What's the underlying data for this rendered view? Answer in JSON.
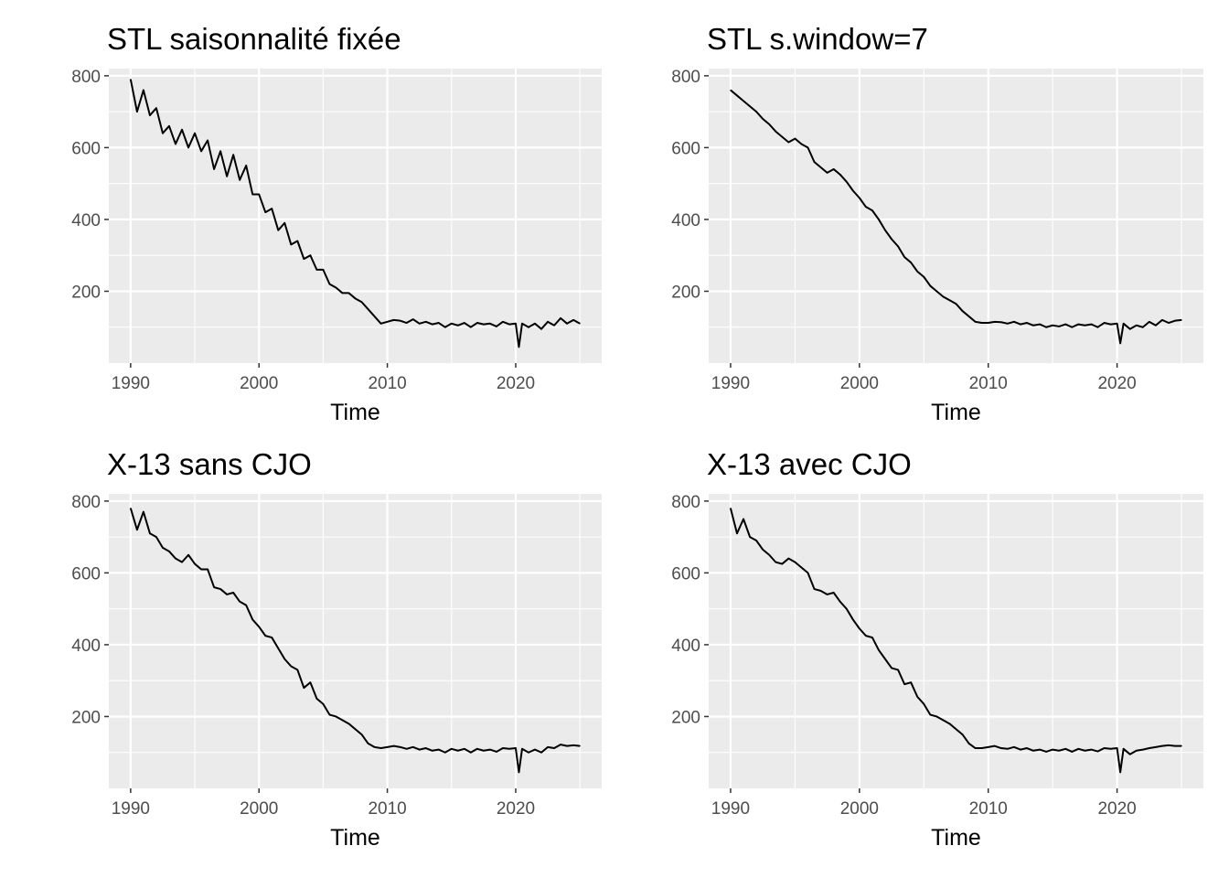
{
  "chart_data": [
    {
      "type": "line",
      "title": "STL saisonnalité fixée",
      "xlabel": "Time",
      "ylabel": "",
      "xlim": [
        1988.3,
        2026.7
      ],
      "ylim": [
        0,
        820
      ],
      "xticks": [
        1990,
        2000,
        2010,
        2020
      ],
      "xtick_labels": [
        "1990",
        "2000",
        "2010",
        "2020"
      ],
      "yticks": [
        200,
        400,
        600,
        800
      ],
      "ytick_labels": [
        "200",
        "400",
        "600",
        "800"
      ],
      "grid": true,
      "series": [
        {
          "x": [
            1990.0,
            1990.5,
            1991.0,
            1991.5,
            1992.0,
            1992.5,
            1993.0,
            1993.5,
            1994.0,
            1994.5,
            1995.0,
            1995.5,
            1996.0,
            1996.5,
            1997.0,
            1997.5,
            1998.0,
            1998.5,
            1999.0,
            1999.5,
            2000.0,
            2000.5,
            2001.0,
            2001.5,
            2002.0,
            2002.5,
            2003.0,
            2003.5,
            2004.0,
            2004.5,
            2005.0,
            2005.5,
            2006.0,
            2006.5,
            2007.0,
            2007.5,
            2008.0,
            2008.5,
            2009.0,
            2009.5,
            2010.0,
            2010.5,
            2011.0,
            2011.5,
            2012.0,
            2012.5,
            2013.0,
            2013.5,
            2014.0,
            2014.5,
            2015.0,
            2015.5,
            2016.0,
            2016.5,
            2017.0,
            2017.5,
            2018.0,
            2018.5,
            2019.0,
            2019.5,
            2020.0,
            2020.25,
            2020.5,
            2021.0,
            2021.5,
            2022.0,
            2022.5,
            2023.0,
            2023.5,
            2024.0,
            2024.5,
            2025.0
          ],
          "y": [
            790,
            700,
            760,
            690,
            710,
            640,
            660,
            610,
            650,
            600,
            640,
            590,
            620,
            540,
            590,
            520,
            580,
            510,
            550,
            470,
            470,
            420,
            430,
            370,
            390,
            330,
            340,
            290,
            300,
            260,
            260,
            220,
            210,
            195,
            195,
            180,
            170,
            150,
            130,
            110,
            115,
            120,
            118,
            112,
            122,
            110,
            115,
            108,
            112,
            100,
            110,
            105,
            112,
            100,
            112,
            108,
            110,
            102,
            115,
            108,
            110,
            45,
            110,
            100,
            110,
            95,
            115,
            105,
            125,
            110,
            120,
            110
          ]
        }
      ]
    },
    {
      "type": "line",
      "title": "STL s.window=7",
      "xlabel": "Time",
      "ylabel": "",
      "xlim": [
        1988.3,
        2026.7
      ],
      "ylim": [
        0,
        820
      ],
      "xticks": [
        1990,
        2000,
        2010,
        2020
      ],
      "xtick_labels": [
        "1990",
        "2000",
        "2010",
        "2020"
      ],
      "yticks": [
        200,
        400,
        600,
        800
      ],
      "ytick_labels": [
        "200",
        "400",
        "600",
        "800"
      ],
      "grid": true,
      "series": [
        {
          "x": [
            1990.0,
            1990.5,
            1991.0,
            1991.5,
            1992.0,
            1992.5,
            1993.0,
            1993.5,
            1994.0,
            1994.5,
            1995.0,
            1995.5,
            1996.0,
            1996.5,
            1997.0,
            1997.5,
            1998.0,
            1998.5,
            1999.0,
            1999.5,
            2000.0,
            2000.5,
            2001.0,
            2001.5,
            2002.0,
            2002.5,
            2003.0,
            2003.5,
            2004.0,
            2004.5,
            2005.0,
            2005.5,
            2006.0,
            2006.5,
            2007.0,
            2007.5,
            2008.0,
            2008.5,
            2009.0,
            2009.5,
            2010.0,
            2010.5,
            2011.0,
            2011.5,
            2012.0,
            2012.5,
            2013.0,
            2013.5,
            2014.0,
            2014.5,
            2015.0,
            2015.5,
            2016.0,
            2016.5,
            2017.0,
            2017.5,
            2018.0,
            2018.5,
            2019.0,
            2019.5,
            2020.0,
            2020.25,
            2020.5,
            2021.0,
            2021.5,
            2022.0,
            2022.5,
            2023.0,
            2023.5,
            2024.0,
            2024.5,
            2025.0
          ],
          "y": [
            760,
            745,
            730,
            715,
            700,
            680,
            665,
            645,
            630,
            615,
            625,
            610,
            600,
            560,
            545,
            530,
            540,
            525,
            505,
            480,
            460,
            435,
            425,
            400,
            370,
            345,
            325,
            295,
            280,
            255,
            240,
            215,
            200,
            185,
            175,
            165,
            145,
            130,
            115,
            112,
            112,
            115,
            114,
            110,
            115,
            108,
            112,
            105,
            108,
            100,
            105,
            102,
            108,
            100,
            108,
            105,
            108,
            100,
            112,
            108,
            110,
            55,
            110,
            95,
            105,
            100,
            115,
            105,
            120,
            112,
            118,
            120
          ]
        }
      ]
    },
    {
      "type": "line",
      "title": "X-13 sans CJO",
      "xlabel": "Time",
      "ylabel": "",
      "xlim": [
        1988.3,
        2026.7
      ],
      "ylim": [
        0,
        820
      ],
      "xticks": [
        1990,
        2000,
        2010,
        2020
      ],
      "xtick_labels": [
        "1990",
        "2000",
        "2010",
        "2020"
      ],
      "yticks": [
        200,
        400,
        600,
        800
      ],
      "ytick_labels": [
        "200",
        "400",
        "600",
        "800"
      ],
      "grid": true,
      "series": [
        {
          "x": [
            1990.0,
            1990.5,
            1991.0,
            1991.5,
            1992.0,
            1992.5,
            1993.0,
            1993.5,
            1994.0,
            1994.5,
            1995.0,
            1995.5,
            1996.0,
            1996.5,
            1997.0,
            1997.5,
            1998.0,
            1998.5,
            1999.0,
            1999.5,
            2000.0,
            2000.5,
            2001.0,
            2001.5,
            2002.0,
            2002.5,
            2003.0,
            2003.5,
            2004.0,
            2004.5,
            2005.0,
            2005.5,
            2006.0,
            2006.5,
            2007.0,
            2007.5,
            2008.0,
            2008.5,
            2009.0,
            2009.5,
            2010.0,
            2010.5,
            2011.0,
            2011.5,
            2012.0,
            2012.5,
            2013.0,
            2013.5,
            2014.0,
            2014.5,
            2015.0,
            2015.5,
            2016.0,
            2016.5,
            2017.0,
            2017.5,
            2018.0,
            2018.5,
            2019.0,
            2019.5,
            2020.0,
            2020.25,
            2020.5,
            2021.0,
            2021.5,
            2022.0,
            2022.5,
            2023.0,
            2023.5,
            2024.0,
            2024.5,
            2025.0
          ],
          "y": [
            780,
            720,
            770,
            710,
            700,
            670,
            660,
            640,
            630,
            650,
            625,
            610,
            610,
            560,
            555,
            540,
            545,
            520,
            510,
            470,
            450,
            425,
            420,
            390,
            360,
            340,
            330,
            280,
            295,
            250,
            235,
            205,
            200,
            190,
            180,
            165,
            150,
            125,
            115,
            112,
            115,
            118,
            115,
            110,
            115,
            108,
            112,
            105,
            108,
            100,
            110,
            105,
            110,
            100,
            110,
            105,
            108,
            102,
            112,
            110,
            112,
            45,
            110,
            100,
            108,
            100,
            115,
            112,
            122,
            118,
            120,
            118
          ]
        }
      ]
    },
    {
      "type": "line",
      "title": "X-13 avec CJO",
      "xlabel": "Time",
      "ylabel": "",
      "xlim": [
        1988.3,
        2026.7
      ],
      "ylim": [
        0,
        820
      ],
      "xticks": [
        1990,
        2000,
        2010,
        2020
      ],
      "xtick_labels": [
        "1990",
        "2000",
        "2010",
        "2020"
      ],
      "yticks": [
        200,
        400,
        600,
        800
      ],
      "ytick_labels": [
        "200",
        "400",
        "600",
        "800"
      ],
      "grid": true,
      "series": [
        {
          "x": [
            1990.0,
            1990.5,
            1991.0,
            1991.5,
            1992.0,
            1992.5,
            1993.0,
            1993.5,
            1994.0,
            1994.5,
            1995.0,
            1995.5,
            1996.0,
            1996.5,
            1997.0,
            1997.5,
            1998.0,
            1998.5,
            1999.0,
            1999.5,
            2000.0,
            2000.5,
            2001.0,
            2001.5,
            2002.0,
            2002.5,
            2003.0,
            2003.5,
            2004.0,
            2004.5,
            2005.0,
            2005.5,
            2006.0,
            2006.5,
            2007.0,
            2007.5,
            2008.0,
            2008.5,
            2009.0,
            2009.5,
            2010.0,
            2010.5,
            2011.0,
            2011.5,
            2012.0,
            2012.5,
            2013.0,
            2013.5,
            2014.0,
            2014.5,
            2015.0,
            2015.5,
            2016.0,
            2016.5,
            2017.0,
            2017.5,
            2018.0,
            2018.5,
            2019.0,
            2019.5,
            2020.0,
            2020.25,
            2020.5,
            2021.0,
            2021.5,
            2022.0,
            2022.5,
            2023.0,
            2023.5,
            2024.0,
            2024.5,
            2025.0
          ],
          "y": [
            780,
            710,
            750,
            700,
            690,
            665,
            650,
            630,
            625,
            640,
            630,
            615,
            600,
            555,
            550,
            540,
            545,
            520,
            500,
            470,
            445,
            425,
            420,
            385,
            360,
            335,
            330,
            290,
            295,
            255,
            235,
            205,
            200,
            190,
            180,
            165,
            150,
            125,
            112,
            112,
            115,
            118,
            112,
            110,
            115,
            108,
            112,
            105,
            108,
            102,
            108,
            105,
            110,
            102,
            110,
            105,
            108,
            103,
            112,
            110,
            112,
            45,
            110,
            95,
            105,
            108,
            112,
            115,
            118,
            120,
            118,
            118
          ]
        }
      ]
    }
  ]
}
